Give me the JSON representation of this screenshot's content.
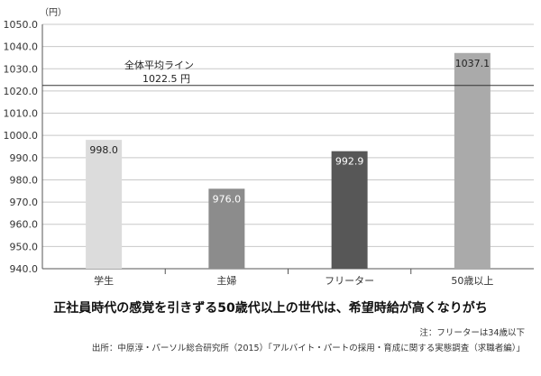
{
  "chart_data": {
    "type": "bar",
    "unit": "（円）",
    "ylim": [
      940,
      1050
    ],
    "yticks": [
      "940.0",
      "950.0",
      "960.0",
      "970.0",
      "980.0",
      "990.0",
      "1000.0",
      "1010.0",
      "1020.0",
      "1030.0",
      "1040.0",
      "1050.0"
    ],
    "categories": [
      "学生",
      "主婦",
      "フリーター",
      "50歳以上"
    ],
    "values": [
      998.0,
      976.0,
      992.9,
      1037.1
    ],
    "value_labels": [
      "998.0",
      "976.0",
      "992.9",
      "1037.1"
    ],
    "bar_colors": [
      "#dcdcdc",
      "#8c8c8c",
      "#575757",
      "#aaaaaa"
    ],
    "average": {
      "value": 1022.5,
      "label": "全体平均ライン",
      "value_label": "1022.5 円"
    },
    "grid": true
  },
  "caption": "正社員時代の感覚を引きずる50歳代以上の世代は、希望時給が高くなりがち",
  "note": "注：フリーターは34歳以下",
  "source": "出所：中原淳・パーソル総合研究所（2015）「アルバイト・パートの採用・育成に関する実態調査（求職者編）」"
}
